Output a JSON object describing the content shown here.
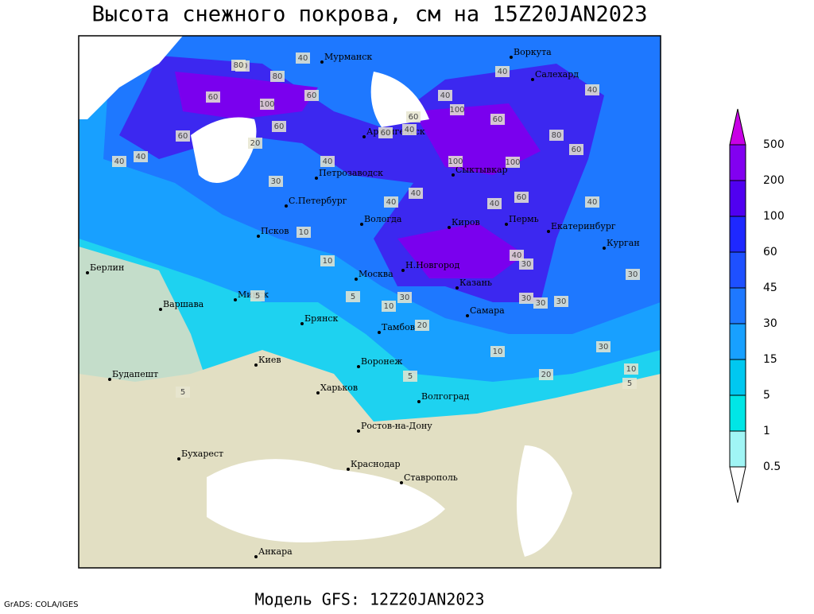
{
  "header": {
    "title": "Высота снежного покрова, см на 15Z20JAN2023"
  },
  "footer": {
    "credit": "GrADS: COLA/IGES",
    "model": "Модель GFS: 12Z20JAN2023"
  },
  "cities": [
    "Мурманск",
    "Воркута",
    "Салехард",
    "Архангельск",
    "Сыктывкар",
    "Петрозаводск",
    "С.Петербург",
    "Вологда",
    "Киров",
    "Пермь",
    "Екатеринбург",
    "Курган",
    "Псков",
    "Берлин",
    "Н.Новгород",
    "Москва",
    "Казань",
    "Минск",
    "Варшава",
    "Самара",
    "Брянск",
    "Тамбов",
    "Киев",
    "Воронеж",
    "Будапешт",
    "Харьков",
    "Волгоград",
    "Ростов-на-Дону",
    "Бухарест",
    "Краснодар",
    "Ставрополь",
    "Анкара"
  ],
  "contour_labels": [
    40,
    40,
    80,
    60,
    100,
    60,
    60,
    60,
    20,
    40,
    40,
    40,
    60,
    100,
    60,
    40,
    80,
    60,
    40,
    60,
    40,
    30,
    40,
    100,
    100,
    40,
    60,
    40,
    30,
    10,
    10,
    30,
    40,
    40,
    30,
    20,
    30,
    30,
    30,
    10,
    20,
    10,
    5,
    5,
    5,
    5,
    10,
    5,
    40,
    80,
    30
  ],
  "legend": {
    "levels": [
      0.5,
      1,
      5,
      15,
      30,
      45,
      60,
      100,
      200,
      500
    ],
    "colors": [
      "#ffffff",
      "#a0f5f5",
      "#00e6e6",
      "#00c8f0",
      "#18a0ff",
      "#1e78ff",
      "#1e50ff",
      "#1e28ff",
      "#5000f0",
      "#8200f0",
      "#c800e6"
    ]
  }
}
